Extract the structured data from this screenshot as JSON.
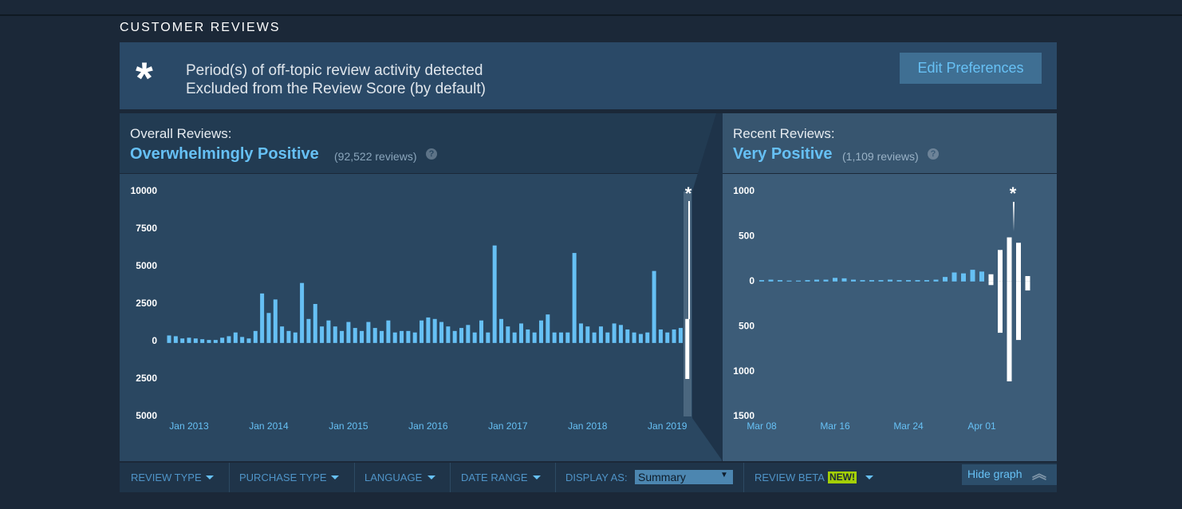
{
  "header": {
    "title": "CUSTOMER REVIEWS"
  },
  "notice": {
    "symbol": "*",
    "line1": "Period(s) of off-topic review activity detected",
    "line2": "Excluded from the Review Score (by default)",
    "button": "Edit Preferences"
  },
  "overall": {
    "label": "Overall Reviews:",
    "rating": "Overwhelmingly Positive",
    "count": "(92,522 reviews)",
    "help": "?"
  },
  "recent": {
    "label": "Recent Reviews:",
    "rating": "Very Positive",
    "count": "(1,109 reviews)",
    "help": "?"
  },
  "chart_data": [
    {
      "type": "bar",
      "categories": [
        null,
        null,
        null,
        "Jan 2013",
        null,
        null,
        null,
        null,
        null,
        null,
        null,
        null,
        null,
        null,
        null,
        "Jan 2014",
        null,
        null,
        null,
        null,
        null,
        null,
        null,
        null,
        null,
        null,
        null,
        "Jan 2015",
        null,
        null,
        null,
        null,
        null,
        null,
        null,
        null,
        null,
        null,
        null,
        "Jan 2016",
        null,
        null,
        null,
        null,
        null,
        null,
        null,
        null,
        null,
        null,
        null,
        "Jan 2017",
        null,
        null,
        null,
        null,
        null,
        null,
        null,
        null,
        null,
        null,
        null,
        "Jan 2018",
        null,
        null,
        null,
        null,
        null,
        null,
        null,
        null,
        null,
        null,
        null,
        "Jan 2019",
        null,
        null,
        null
      ],
      "series": [
        {
          "color": "#66c0f4",
          "values": [
            400,
            350,
            200,
            250,
            200,
            150,
            100,
            100,
            250,
            350,
            600,
            300,
            200,
            700,
            3200,
            1900,
            2800,
            1000,
            700,
            600,
            3900,
            1500,
            2500,
            1000,
            1400,
            1000,
            700,
            1300,
            900,
            700,
            1300,
            900,
            700,
            1400,
            600,
            700,
            700,
            600,
            1400,
            1600,
            1500,
            1300,
            1000,
            700,
            900,
            1100,
            600,
            1400,
            600,
            6400,
            1500,
            1000,
            600,
            1200,
            800,
            600,
            1400,
            1800,
            600,
            600,
            600,
            5900,
            1200,
            1000,
            600,
            1000,
            600,
            1200,
            1100,
            800,
            600,
            500,
            600,
            4700,
            800,
            600,
            800,
            900,
            null
          ]
        },
        {
          "color": "#66c0f4",
          "values": [
            -100,
            -100,
            -100,
            -100,
            -100,
            -100,
            -100,
            -100,
            -100,
            -100,
            -100,
            -100,
            -100,
            -100,
            -100,
            -100,
            -100,
            -100,
            -100,
            -100,
            -100,
            -100,
            -100,
            -100,
            -100,
            -100,
            -100,
            -100,
            -100,
            -100,
            -100,
            -100,
            -100,
            -100,
            -100,
            -100,
            -100,
            -100,
            -100,
            -100,
            -100,
            -100,
            -100,
            -100,
            -100,
            -100,
            -100,
            -100,
            -100,
            -100,
            -100,
            -100,
            -100,
            -100,
            -100,
            -100,
            -100,
            -100,
            -100,
            -100,
            -100,
            -100,
            -100,
            -100,
            -100,
            -100,
            -100,
            -100,
            -100,
            -100,
            -100,
            -100,
            -100,
            -100,
            -100,
            -100,
            -100,
            -100,
            null
          ]
        },
        {
          "color": "#ffffff",
          "values": [
            null,
            null,
            null,
            null,
            null,
            null,
            null,
            null,
            null,
            null,
            null,
            null,
            null,
            null,
            null,
            null,
            null,
            null,
            null,
            null,
            null,
            null,
            null,
            null,
            null,
            null,
            null,
            null,
            null,
            null,
            null,
            null,
            null,
            null,
            null,
            null,
            null,
            null,
            null,
            null,
            null,
            null,
            null,
            null,
            null,
            null,
            null,
            null,
            null,
            null,
            null,
            null,
            null,
            null,
            null,
            null,
            null,
            null,
            null,
            null,
            null,
            null,
            null,
            null,
            null,
            null,
            null,
            null,
            null,
            null,
            null,
            null,
            null,
            null,
            null,
            null,
            null,
            null,
            1500
          ]
        },
        {
          "color": "#ffffff",
          "values": [
            null,
            null,
            null,
            null,
            null,
            null,
            null,
            null,
            null,
            null,
            null,
            null,
            null,
            null,
            null,
            null,
            null,
            null,
            null,
            null,
            null,
            null,
            null,
            null,
            null,
            null,
            null,
            null,
            null,
            null,
            null,
            null,
            null,
            null,
            null,
            null,
            null,
            null,
            null,
            null,
            null,
            null,
            null,
            null,
            null,
            null,
            null,
            null,
            null,
            null,
            null,
            null,
            null,
            null,
            null,
            null,
            null,
            null,
            null,
            null,
            null,
            null,
            null,
            null,
            null,
            null,
            null,
            null,
            null,
            null,
            null,
            null,
            null,
            null,
            null,
            null,
            null,
            null,
            -2500
          ]
        }
      ],
      "ylim": [
        -5000,
        10000
      ],
      "yticks": [
        10000,
        7500,
        5000,
        2500,
        0,
        {
          "value": -2500,
          "label": "2500"
        },
        {
          "value": -5000,
          "label": "5000"
        }
      ],
      "annotation": "*"
    },
    {
      "type": "bar",
      "categories": [
        "Mar 08",
        null,
        null,
        null,
        null,
        null,
        null,
        null,
        "Mar 16",
        null,
        null,
        null,
        null,
        null,
        null,
        null,
        "Mar 24",
        null,
        null,
        null,
        null,
        null,
        null,
        null,
        "Apr 01",
        null,
        null,
        null,
        null,
        null
      ],
      "series": [
        {
          "color": "#66c0f4",
          "values": [
            15,
            20,
            15,
            10,
            10,
            15,
            20,
            20,
            40,
            35,
            20,
            15,
            15,
            15,
            20,
            15,
            15,
            15,
            15,
            20,
            50,
            100,
            90,
            130,
            110,
            null,
            null,
            null,
            null,
            null
          ]
        },
        {
          "color": "#ffffff",
          "values": [
            null,
            null,
            null,
            null,
            null,
            null,
            null,
            null,
            null,
            null,
            null,
            null,
            null,
            null,
            null,
            null,
            null,
            null,
            null,
            null,
            null,
            null,
            null,
            null,
            null,
            80,
            350,
            490,
            430,
            60
          ]
        },
        {
          "color": "#ffffff",
          "values": [
            null,
            null,
            null,
            null,
            null,
            null,
            null,
            null,
            null,
            null,
            null,
            null,
            null,
            null,
            null,
            null,
            null,
            null,
            null,
            null,
            null,
            null,
            null,
            null,
            null,
            -40,
            -570,
            -1110,
            -650,
            -100
          ]
        }
      ],
      "ylim": [
        -1500,
        1000
      ],
      "yticks": [
        1000,
        500,
        0,
        {
          "value": -500,
          "label": "500"
        },
        {
          "value": -1000,
          "label": "1000"
        },
        {
          "value": -1500,
          "label": "1500"
        }
      ],
      "annotation": "*"
    }
  ],
  "filters": {
    "review_type": "REVIEW TYPE",
    "purchase_type": "PURCHASE TYPE",
    "language": "LANGUAGE",
    "date_range": "DATE RANGE",
    "display_as": "DISPLAY AS:",
    "display_value": "Summary",
    "review_beta": "REVIEW BETA",
    "new_badge": "NEW!",
    "hide_graph": "Hide graph"
  }
}
